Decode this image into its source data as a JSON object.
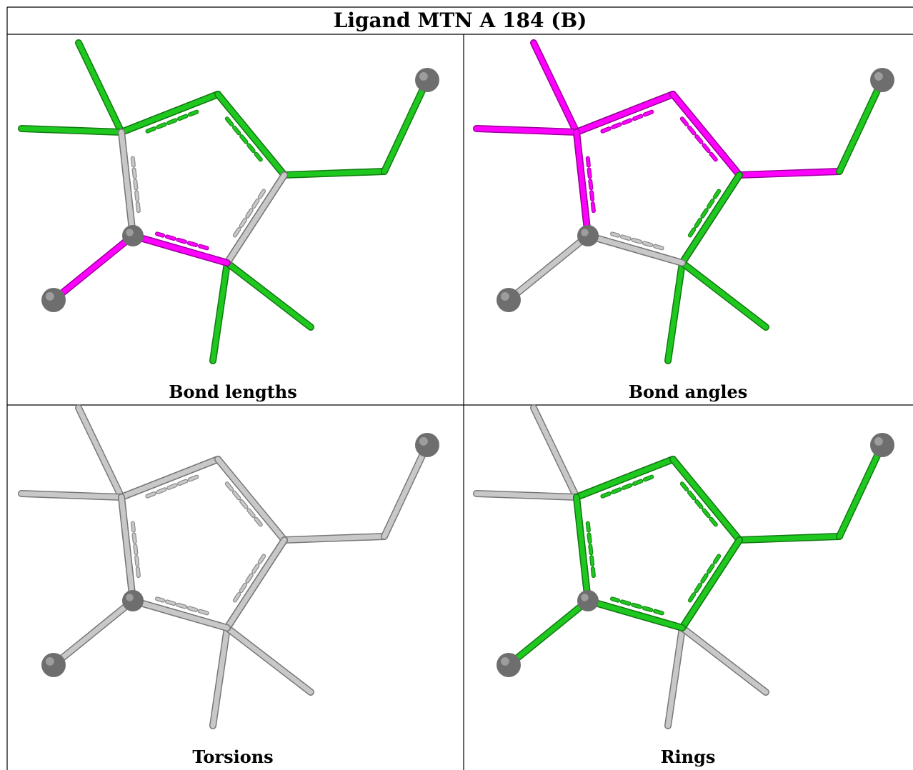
{
  "title": "Ligand MTN A 184 (B)",
  "colors": {
    "neutral": "#c8c8c8",
    "outlier": "#ff00ff",
    "ok": "#1ec81e",
    "atom": "#6e6e6e"
  },
  "panels": [
    {
      "caption": "Bond lengths",
      "bond_colors": [
        "ok",
        "ok",
        "ok",
        "ok",
        "ok",
        "neutral",
        "neutral",
        "outlier",
        "outlier",
        "ok",
        "ok",
        "ok",
        "neutral",
        "ok"
      ],
      "ring_colors": [
        "ok",
        "ok",
        "neutral",
        "outlier",
        "neutral"
      ]
    },
    {
      "caption": "Bond angles",
      "bond_colors": [
        "outlier",
        "outlier",
        "outlier",
        "outlier",
        "outlier",
        "ok",
        "ok",
        "neutral",
        "neutral",
        "ok",
        "ok",
        "ok",
        "outlier",
        "ok"
      ],
      "ring_colors": [
        "outlier",
        "outlier",
        "ok",
        "neutral",
        "outlier"
      ]
    },
    {
      "caption": "Torsions",
      "bond_colors": [
        "neutral",
        "neutral",
        "neutral",
        "neutral",
        "neutral",
        "neutral",
        "neutral",
        "neutral",
        "neutral",
        "neutral",
        "neutral",
        "neutral",
        "neutral",
        "neutral"
      ],
      "ring_colors": [
        "neutral",
        "neutral",
        "neutral",
        "neutral",
        "neutral"
      ]
    },
    {
      "caption": "Rings",
      "bond_colors": [
        "neutral",
        "neutral",
        "ok",
        "ok",
        "ok",
        "neutral",
        "neutral",
        "neutral",
        "ok",
        "neutral",
        "neutral",
        "ok",
        "ok",
        "neutral"
      ],
      "ring_colors": [
        "ok",
        "ok",
        "ok",
        "ok",
        "ok"
      ]
    }
  ]
}
